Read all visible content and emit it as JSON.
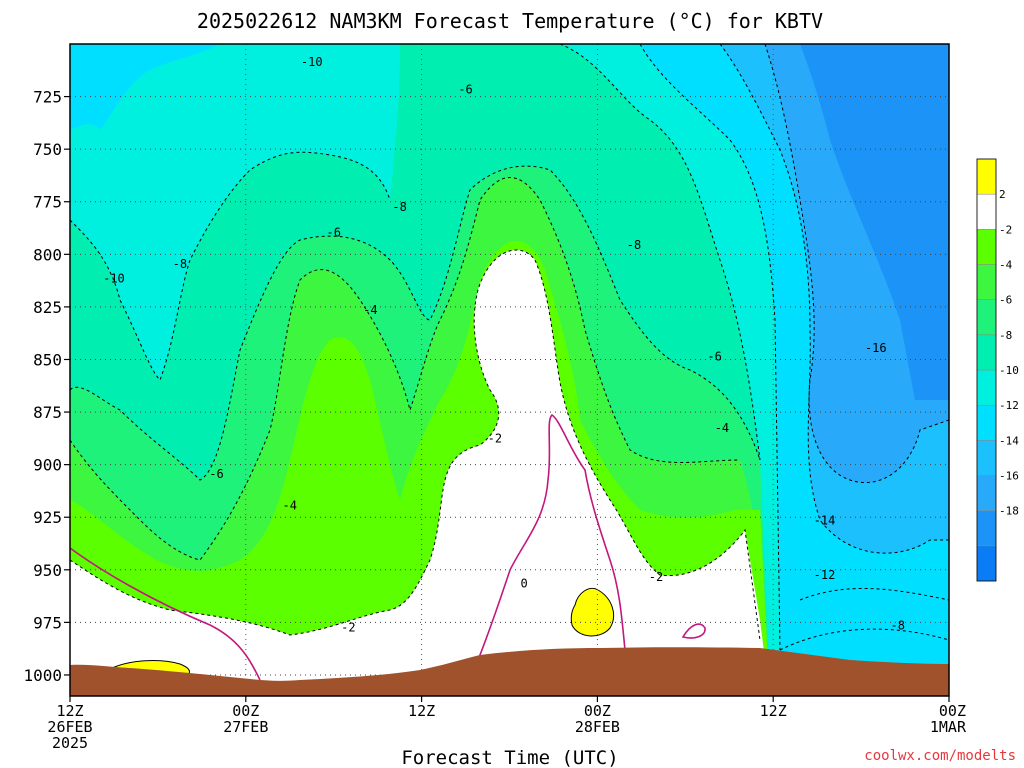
{
  "chart_data": {
    "type": "heatmap",
    "title": "2025022612 NAM3KM Forecast Temperature (°C) for KBTV",
    "xlabel": "Forecast Time (UTC)",
    "ylabel": "",
    "y_axis": {
      "scale": "pressure-inverted",
      "range": [
        700,
        1010
      ],
      "ticks": [
        725,
        750,
        775,
        800,
        825,
        850,
        875,
        900,
        925,
        950,
        975,
        1000
      ]
    },
    "x_axis": {
      "range_hours": [
        0,
        60
      ],
      "ticks": [
        {
          "hour": 0,
          "line1": "12Z",
          "line2": "26FEB",
          "line3": "2025"
        },
        {
          "hour": 12,
          "line1": "00Z",
          "line2": "27FEB",
          "line3": ""
        },
        {
          "hour": 24,
          "line1": "12Z",
          "line2": "",
          "line3": ""
        },
        {
          "hour": 36,
          "line1": "00Z",
          "line2": "28FEB",
          "line3": ""
        },
        {
          "hour": 48,
          "line1": "12Z",
          "line2": "",
          "line3": ""
        },
        {
          "hour": 60,
          "line1": "00Z",
          "line2": "1MAR",
          "line3": ""
        }
      ]
    },
    "grid": true,
    "legend": {
      "placement": "right",
      "bins": [
        {
          "label": "",
          "color": "#0a7cf5"
        },
        {
          "label": "-18",
          "color": "#1b93f7"
        },
        {
          "label": "-16",
          "color": "#28a9fa"
        },
        {
          "label": "-14",
          "color": "#1cc0fc"
        },
        {
          "label": "-12",
          "color": "#00dfff"
        },
        {
          "label": "-10",
          "color": "#00f0e0"
        },
        {
          "label": "-8",
          "color": "#00efb0"
        },
        {
          "label": "-6",
          "color": "#1ef27a"
        },
        {
          "label": "-4",
          "color": "#3cf640"
        },
        {
          "label": "-2",
          "color": "#5cff00"
        },
        {
          "label": "2",
          "color": "#ffffff"
        },
        {
          "label": "",
          "color": "#ffff00"
        }
      ]
    },
    "isotherm_labels": [
      {
        "text": "-10",
        "hour": 3,
        "pres": 812
      },
      {
        "text": "-8",
        "hour": 7.5,
        "pres": 805
      },
      {
        "text": "-10",
        "hour": 16.5,
        "pres": 709
      },
      {
        "text": "-6",
        "hour": 27,
        "pres": 722
      },
      {
        "text": "-8",
        "hour": 22.5,
        "pres": 778
      },
      {
        "text": "-6",
        "hour": 18,
        "pres": 790
      },
      {
        "text": "-4",
        "hour": 20.5,
        "pres": 827
      },
      {
        "text": "-6",
        "hour": 10,
        "pres": 905
      },
      {
        "text": "-4",
        "hour": 15,
        "pres": 920
      },
      {
        "text": "-2",
        "hour": 19,
        "pres": 978
      },
      {
        "text": "-2",
        "hour": 29,
        "pres": 888
      },
      {
        "text": "0",
        "hour": 31,
        "pres": 957
      },
      {
        "text": "-8",
        "hour": 38.5,
        "pres": 796
      },
      {
        "text": "-6",
        "hour": 44,
        "pres": 849
      },
      {
        "text": "-4",
        "hour": 44.5,
        "pres": 883
      },
      {
        "text": "-2",
        "hour": 40,
        "pres": 954
      },
      {
        "text": "-16",
        "hour": 55,
        "pres": 845
      },
      {
        "text": "-14",
        "hour": 51.5,
        "pres": 927
      },
      {
        "text": "-12",
        "hour": 51.5,
        "pres": 953
      },
      {
        "text": "-8",
        "hour": 56.5,
        "pres": 977
      }
    ],
    "ground_color": "#a0522d"
  },
  "footer": {
    "xlabel": "Forecast Time (UTC)",
    "watermark": "coolwx.com/modelts"
  }
}
